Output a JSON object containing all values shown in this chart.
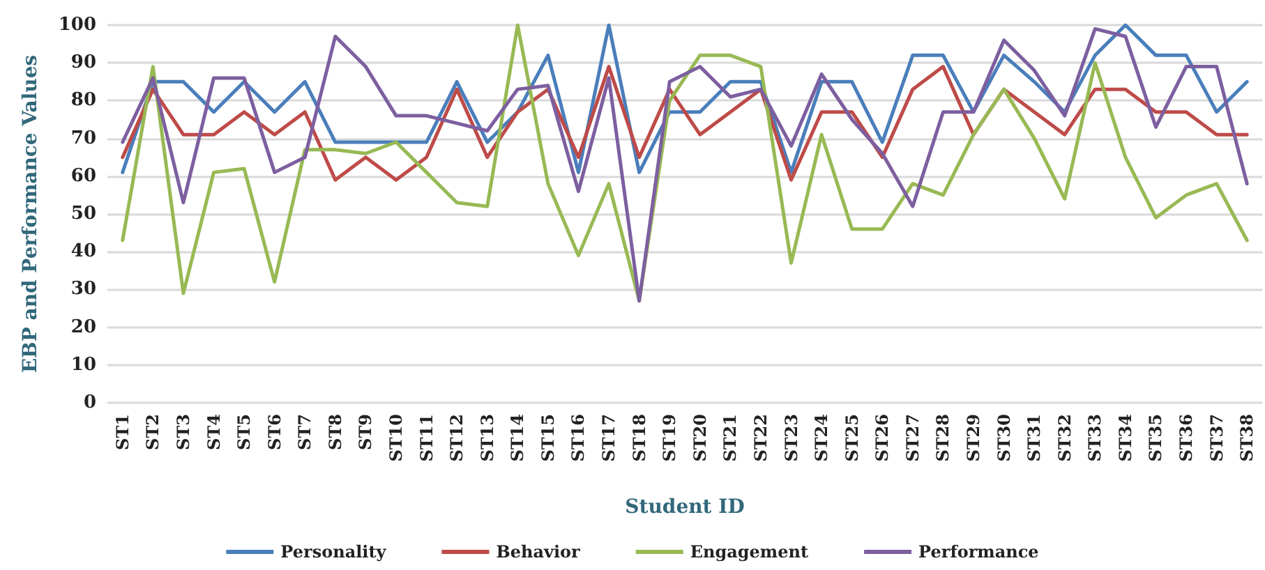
{
  "chart_data": {
    "type": "line",
    "xlabel": "Student ID",
    "ylabel": "EBP and Performance Values",
    "categories": [
      "ST1",
      "ST2",
      "ST3",
      "ST4",
      "ST5",
      "ST6",
      "ST7",
      "ST8",
      "ST9",
      "ST10",
      "ST11",
      "ST12",
      "ST13",
      "ST14",
      "ST15",
      "ST16",
      "ST17",
      "ST18",
      "ST19",
      "ST20",
      "ST21",
      "ST22",
      "ST23",
      "ST24",
      "ST25",
      "ST26",
      "ST27",
      "ST28",
      "ST29",
      "ST30",
      "ST31",
      "ST32",
      "ST33",
      "ST34",
      "ST35",
      "ST36",
      "ST37",
      "ST38"
    ],
    "series": [
      {
        "name": "Personality",
        "color": "#4a7ebb",
        "values": [
          61,
          85,
          85,
          77,
          85,
          77,
          85,
          69,
          69,
          69,
          69,
          85,
          69,
          77,
          92,
          61,
          100,
          61,
          77,
          77,
          85,
          85,
          61,
          85,
          85,
          69,
          92,
          92,
          77,
          92,
          85,
          77,
          92,
          100,
          92,
          92,
          77,
          85
        ]
      },
      {
        "name": "Behavior",
        "color": "#be4b48",
        "values": [
          65,
          83,
          71,
          71,
          77,
          71,
          77,
          59,
          65,
          59,
          65,
          83,
          65,
          77,
          83,
          65,
          89,
          65,
          83,
          71,
          77,
          83,
          59,
          77,
          77,
          65,
          83,
          89,
          71,
          83,
          77,
          71,
          83,
          83,
          77,
          77,
          71,
          71
        ]
      },
      {
        "name": "Engagement",
        "color": "#98b954",
        "values": [
          43,
          89,
          29,
          61,
          62,
          32,
          67,
          67,
          66,
          69,
          61,
          53,
          52,
          100,
          58,
          39,
          58,
          27,
          80,
          92,
          92,
          89,
          37,
          71,
          46,
          46,
          58,
          55,
          71,
          83,
          70,
          54,
          90,
          65,
          49,
          55,
          58,
          43
        ]
      },
      {
        "name": "Performance",
        "color": "#7d5fa0",
        "values": [
          69,
          86,
          53,
          86,
          86,
          61,
          65,
          97,
          89,
          76,
          76,
          74,
          72,
          83,
          84,
          56,
          86,
          27,
          85,
          89,
          81,
          83,
          68,
          87,
          75,
          66,
          52,
          77,
          77,
          96,
          88,
          76,
          99,
          97,
          73,
          89,
          89,
          58
        ]
      }
    ],
    "ylim": [
      0,
      100
    ],
    "yticks": [
      0,
      10,
      20,
      30,
      40,
      50,
      60,
      70,
      80,
      90,
      100
    ],
    "grid": "y",
    "legend": "bottom",
    "marker": "none",
    "line_style": "solid"
  }
}
